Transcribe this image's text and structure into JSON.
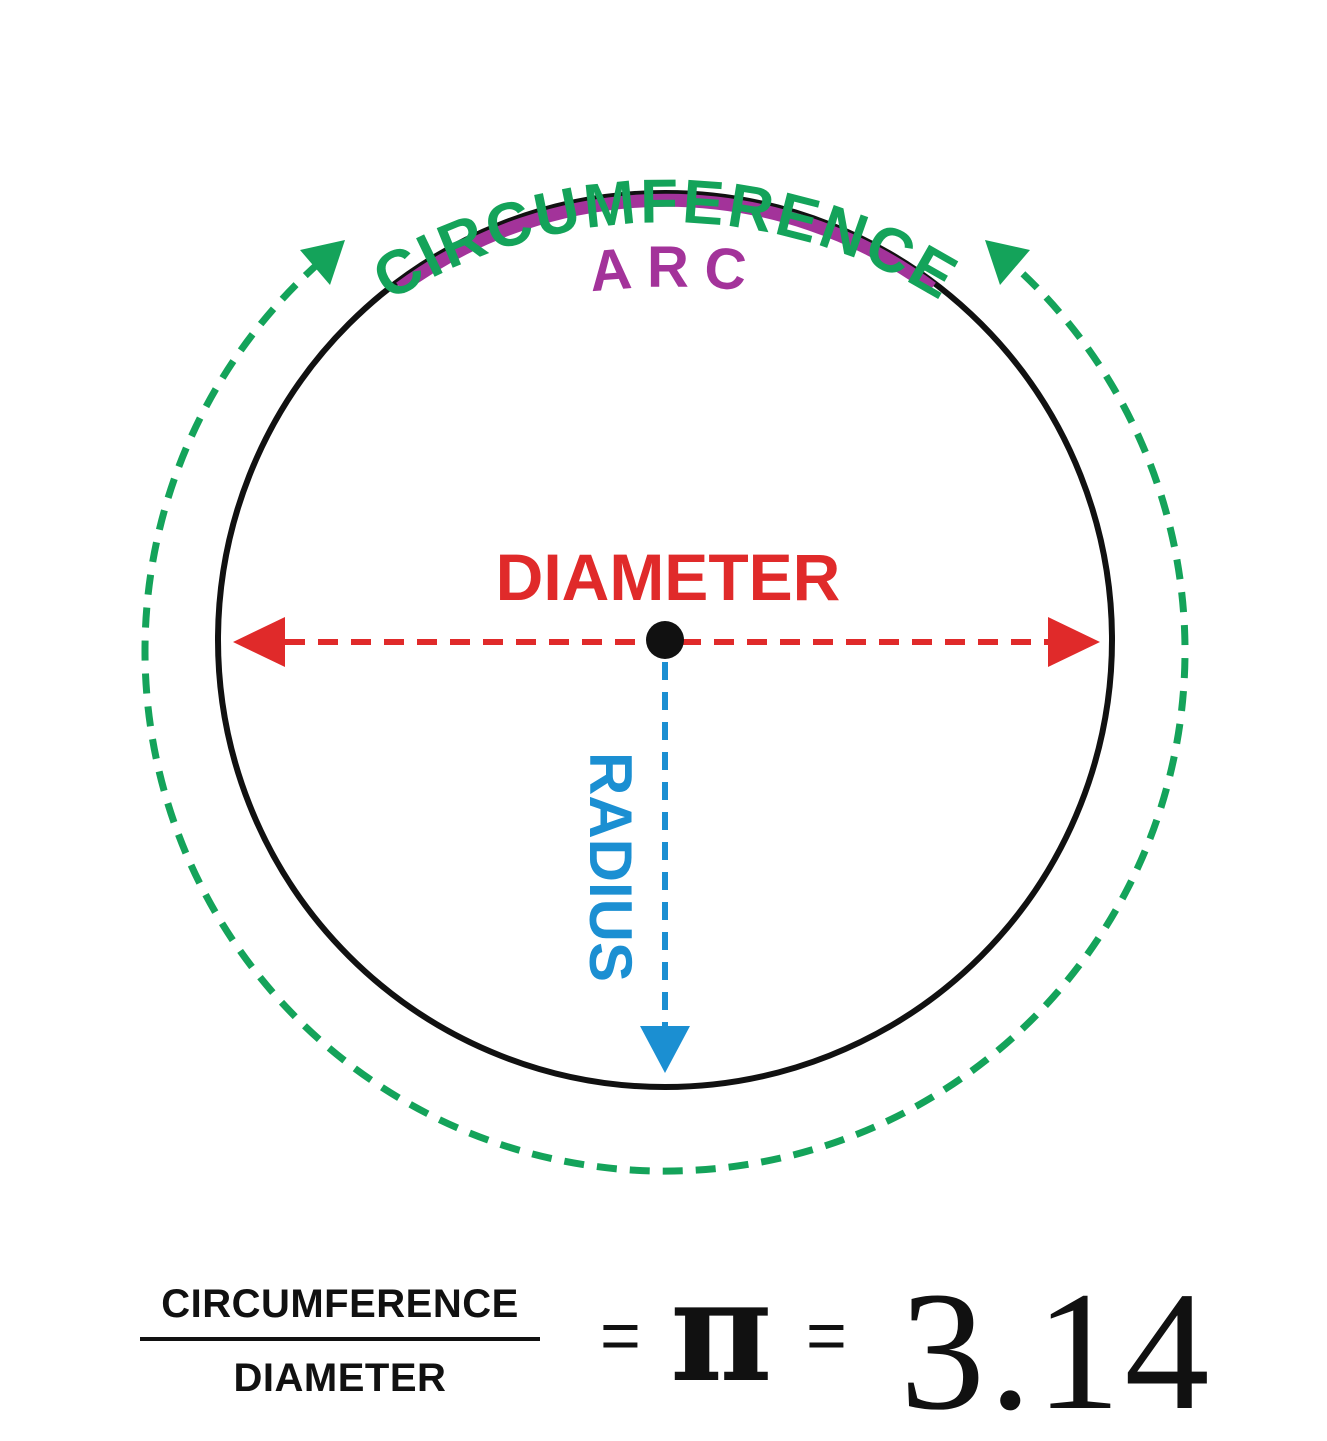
{
  "diagram": {
    "circumference_label": "CIRCUMFERENCE",
    "arc_label": "ARC",
    "diameter_label": "DIAMETER",
    "radius_label": "RADIUS"
  },
  "formula": {
    "numerator": "CIRCUMFERENCE",
    "denominator": "DIAMETER",
    "equals": "=",
    "pi_symbol": "π",
    "value": "3.14"
  },
  "colors": {
    "circle": "#111111",
    "circumference": "#14a35a",
    "arc": "#a3339a",
    "diameter": "#e02a2a",
    "radius": "#1b8fd2",
    "center_point": "#111111"
  }
}
